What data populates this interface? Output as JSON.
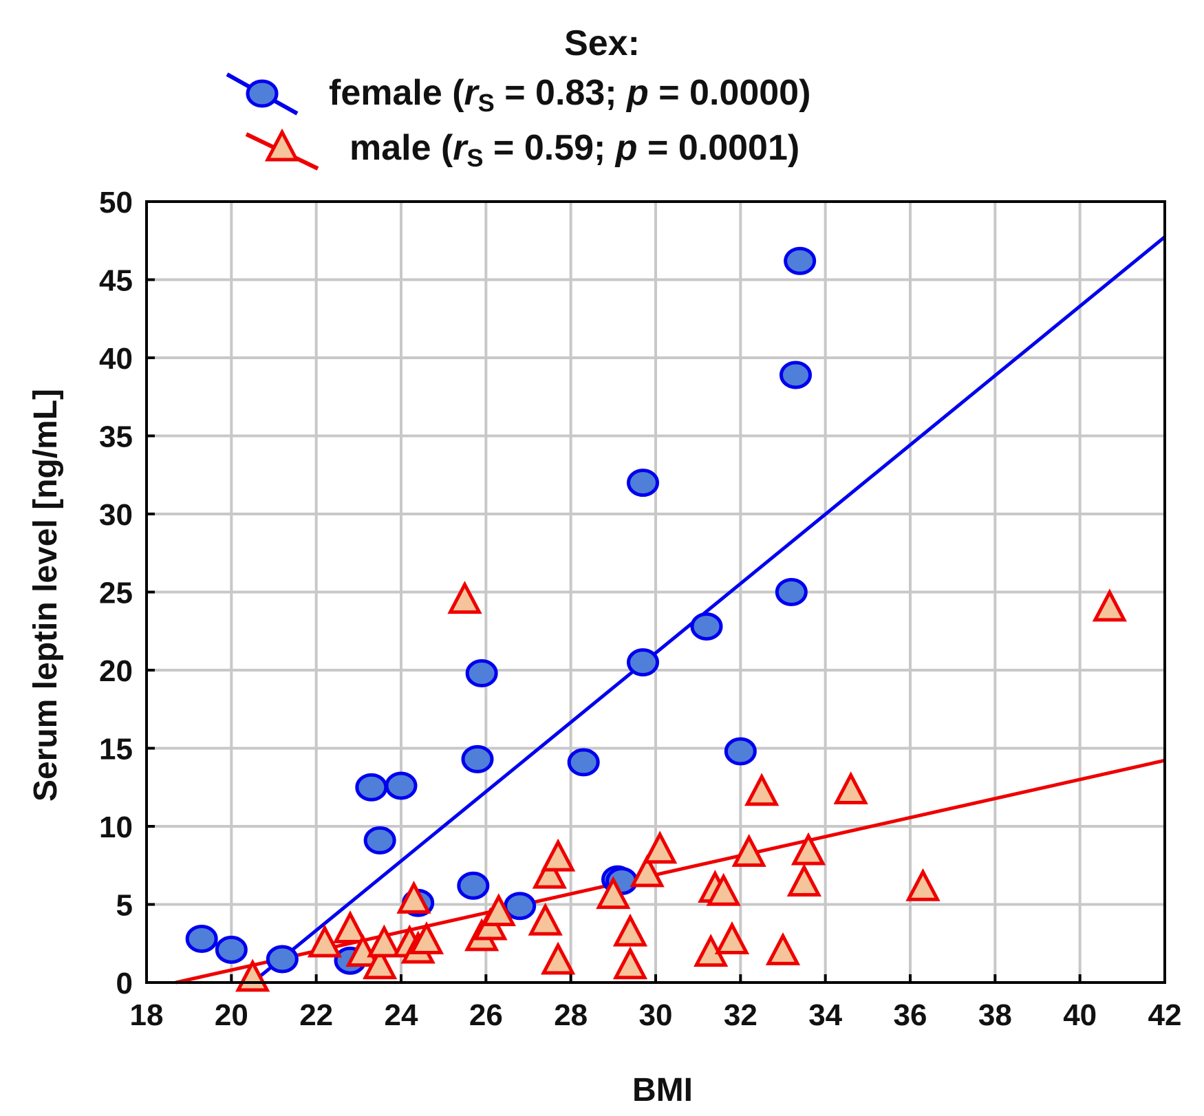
{
  "chart_data": {
    "type": "scatter",
    "title": "Sex:",
    "xlabel": "BMI",
    "ylabel": "Serum leptin level [ng/mL]",
    "xlim": [
      18,
      42
    ],
    "ylim": [
      0,
      50
    ],
    "xticks": [
      18,
      20,
      22,
      24,
      26,
      28,
      30,
      32,
      34,
      36,
      38,
      40,
      42
    ],
    "yticks": [
      0,
      5,
      10,
      15,
      20,
      25,
      30,
      35,
      40,
      45,
      50
    ],
    "grid": true,
    "legend_position": "top-center",
    "series": [
      {
        "name": "female",
        "label_prefix": "female (",
        "stat_r": "r",
        "stat_r_sub": "S",
        "stat_r_value": " = 0.83; ",
        "stat_p": "p",
        "stat_p_value": " = 0.0000)",
        "marker": "circle",
        "color": "#0000ee",
        "fill": "#4f7fd8",
        "fit": {
          "intercept": -45.5,
          "slope": 2.22
        },
        "points": [
          [
            19.3,
            2.8
          ],
          [
            20.0,
            2.1
          ],
          [
            21.2,
            1.5
          ],
          [
            22.8,
            1.4
          ],
          [
            23.3,
            12.5
          ],
          [
            23.5,
            9.1
          ],
          [
            24.0,
            12.6
          ],
          [
            24.4,
            5.1
          ],
          [
            25.7,
            6.2
          ],
          [
            25.8,
            14.3
          ],
          [
            25.9,
            19.8
          ],
          [
            26.8,
            4.9
          ],
          [
            28.3,
            14.1
          ],
          [
            29.1,
            6.6
          ],
          [
            29.2,
            6.5
          ],
          [
            29.7,
            32.0
          ],
          [
            29.7,
            20.5
          ],
          [
            31.2,
            22.8
          ],
          [
            32.0,
            14.8
          ],
          [
            33.2,
            25.0
          ],
          [
            33.3,
            38.9
          ],
          [
            33.4,
            46.2
          ]
        ]
      },
      {
        "name": "male",
        "label_prefix": "male (",
        "stat_r": "r",
        "stat_r_sub": "S",
        "stat_r_value": " = 0.59; ",
        "stat_p": "p",
        "stat_p_value": " = 0.0001)",
        "marker": "triangle",
        "color": "#ee0000",
        "fill": "#f5c49a",
        "fit": {
          "intercept": -11.4,
          "slope": 0.61
        },
        "points": [
          [
            20.5,
            0.4
          ],
          [
            22.2,
            2.6
          ],
          [
            22.8,
            3.5
          ],
          [
            23.1,
            2.0
          ],
          [
            23.5,
            1.2
          ],
          [
            23.6,
            2.6
          ],
          [
            24.2,
            2.6
          ],
          [
            24.3,
            5.4
          ],
          [
            24.4,
            2.2
          ],
          [
            24.6,
            2.8
          ],
          [
            25.5,
            24.6
          ],
          [
            25.9,
            3.0
          ],
          [
            26.1,
            3.7
          ],
          [
            26.3,
            4.6
          ],
          [
            27.4,
            4.0
          ],
          [
            27.5,
            7.0
          ],
          [
            27.7,
            1.5
          ],
          [
            27.7,
            8.1
          ],
          [
            29.0,
            5.7
          ],
          [
            29.4,
            3.3
          ],
          [
            29.4,
            1.2
          ],
          [
            29.8,
            7.1
          ],
          [
            30.1,
            8.6
          ],
          [
            31.3,
            2.0
          ],
          [
            31.4,
            6.1
          ],
          [
            31.6,
            5.9
          ],
          [
            31.8,
            2.8
          ],
          [
            32.2,
            8.4
          ],
          [
            32.5,
            12.3
          ],
          [
            33.0,
            2.1
          ],
          [
            33.5,
            6.5
          ],
          [
            33.6,
            8.5
          ],
          [
            34.6,
            12.4
          ],
          [
            36.3,
            6.2
          ],
          [
            40.7,
            24.1
          ]
        ]
      }
    ]
  }
}
